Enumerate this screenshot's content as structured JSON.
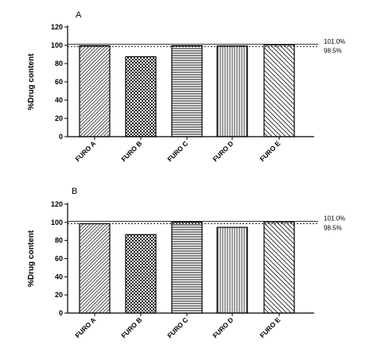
{
  "chart_data": [
    {
      "type": "bar",
      "panel": "A",
      "ylabel": "%Drug content",
      "ylim": [
        0,
        120
      ],
      "yticks": [
        0,
        20,
        40,
        60,
        80,
        100,
        120
      ],
      "categories": [
        "FURO A",
        "FURO B",
        "FURO C",
        "FURO D",
        "FURO E"
      ],
      "values": [
        99.5,
        87.5,
        99.5,
        99.2,
        100.5
      ],
      "patterns": [
        "diagonal-dense",
        "checker",
        "horizontal",
        "vertical",
        "diagonal-wide"
      ],
      "reference_lines": [
        {
          "value": 101.0,
          "label": "101.0%",
          "style": "solid"
        },
        {
          "value": 98.5,
          "label": "98.5%",
          "style": "dashed"
        }
      ]
    },
    {
      "type": "bar",
      "panel": "B",
      "ylabel": "%Drug content",
      "ylim": [
        0,
        120
      ],
      "yticks": [
        0,
        20,
        40,
        60,
        80,
        100,
        120
      ],
      "categories": [
        "FURO A",
        "FURO B",
        "FURO C",
        "FURO D",
        "FURO E"
      ],
      "values": [
        98.5,
        86.5,
        100.5,
        94.5,
        100.5
      ],
      "patterns": [
        "diagonal-dense",
        "checker",
        "horizontal",
        "vertical",
        "diagonal-wide"
      ],
      "reference_lines": [
        {
          "value": 101.0,
          "label": "101.0%",
          "style": "solid"
        },
        {
          "value": 98.5,
          "label": "98.5%",
          "style": "dashed"
        }
      ]
    }
  ]
}
